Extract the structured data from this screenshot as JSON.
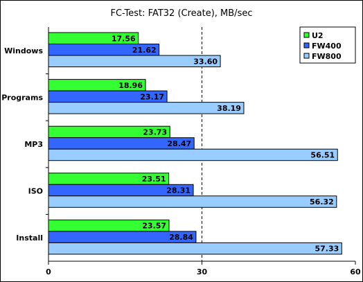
{
  "chart_data": {
    "type": "bar",
    "orientation": "horizontal",
    "title": "FC-Test: FAT32 (Create), MB/sec",
    "categories": [
      "Windows",
      "Programs",
      "MP3",
      "ISO",
      "Install"
    ],
    "series": [
      {
        "name": "U2",
        "color": "#33ff33",
        "values": [
          17.56,
          18.96,
          23.73,
          23.51,
          23.57
        ],
        "labels": [
          "17.56",
          "18.96",
          "23.73",
          "23.51",
          "23.57"
        ]
      },
      {
        "name": "FW400",
        "color": "#3366ff",
        "values": [
          21.62,
          23.17,
          28.47,
          28.31,
          28.84
        ],
        "labels": [
          "21.62",
          "23.17",
          "28.47",
          "28.31",
          "28.84"
        ]
      },
      {
        "name": "FW800",
        "color": "#99ccff",
        "values": [
          33.6,
          38.19,
          56.51,
          56.32,
          57.33
        ],
        "labels": [
          "33.60",
          "38.19",
          "56.51",
          "56.32",
          "57.33"
        ]
      }
    ],
    "xlim": [
      0,
      60
    ],
    "xticks": [
      0,
      30,
      60
    ],
    "xtick_labels": [
      "0",
      "30",
      "60"
    ],
    "reference_line": 30,
    "legend_position": "top-right",
    "grid": false
  }
}
